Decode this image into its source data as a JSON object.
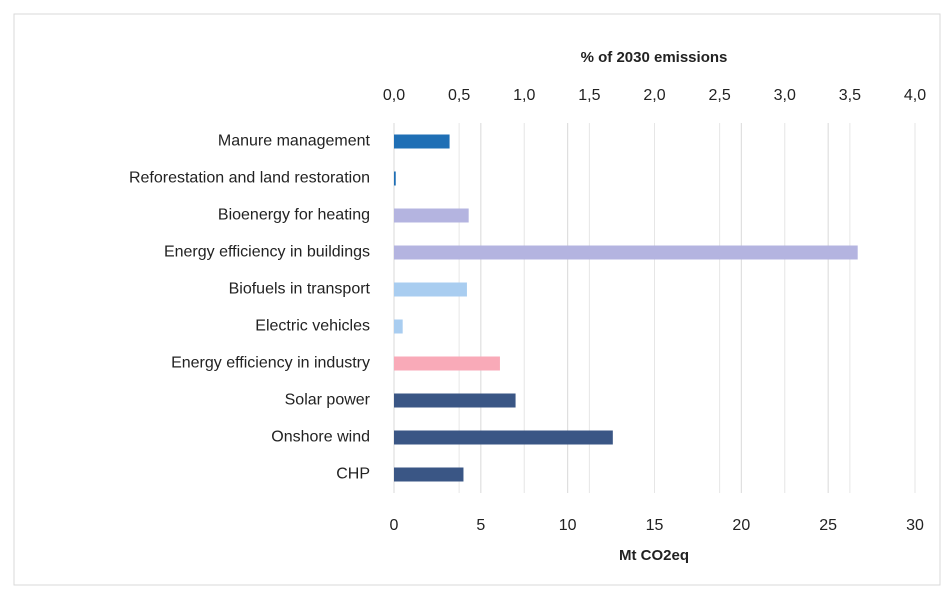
{
  "chart_data": {
    "type": "bar",
    "orientation": "horizontal",
    "title": "% of 2030 emissions",
    "x_label": "Mt CO2eq",
    "categories": [
      "Manure management",
      "Reforestation and land restoration",
      "Bioenergy for heating",
      "Energy efficiency in buildings",
      "Biofuels in transport",
      "Electric vehicles",
      "Energy efficiency in industry",
      "Solar power",
      "Onshore wind",
      "CHP"
    ],
    "values": [
      3.2,
      0.1,
      4.3,
      26.7,
      4.2,
      0.5,
      6.1,
      7.0,
      12.6,
      4.0
    ],
    "colors": [
      "#1f6fb5",
      "#1f6fb5",
      "#b4b4e0",
      "#b4b4e0",
      "#a9cdf0",
      "#a9cdf0",
      "#f9aab8",
      "#3a5685",
      "#3a5685",
      "#3a5685"
    ],
    "xlim": [
      0,
      30
    ],
    "xticks": [
      0,
      5,
      10,
      15,
      20,
      25,
      30
    ],
    "x2lim": [
      0,
      4
    ],
    "x2ticks": [
      {
        "value": 0,
        "label": "0,0"
      },
      {
        "value": 0.5,
        "label": "0,5"
      },
      {
        "value": 1,
        "label": "1,0"
      },
      {
        "value": 1.5,
        "label": "1,5"
      },
      {
        "value": 2,
        "label": "2,0"
      },
      {
        "value": 2.5,
        "label": "2,5"
      },
      {
        "value": 3,
        "label": "3,0"
      },
      {
        "value": 3.5,
        "label": "3,5"
      },
      {
        "value": 4,
        "label": "4,0"
      }
    ],
    "grid": true
  }
}
